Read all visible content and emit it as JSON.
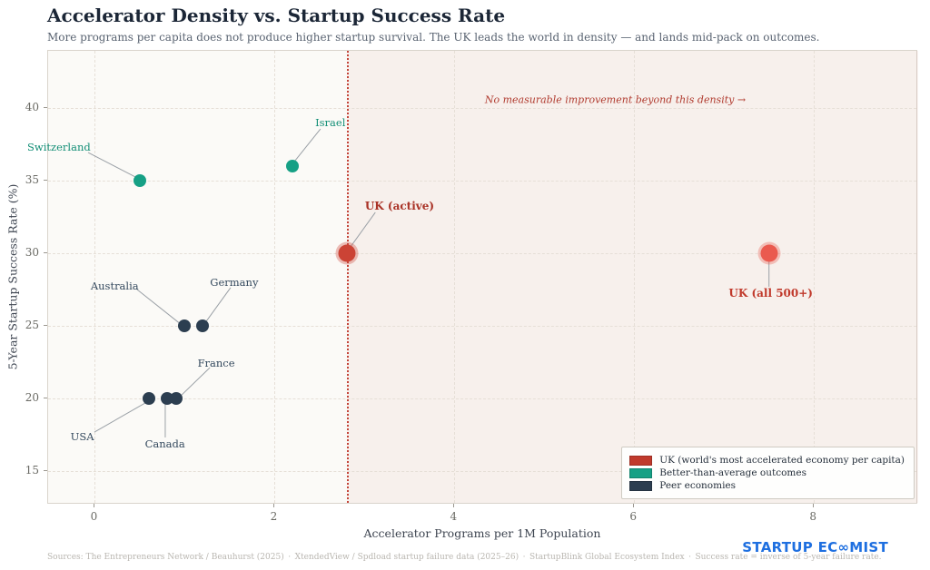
{
  "chart_data": {
    "type": "scatter",
    "title": "Accelerator Density vs. Startup Success Rate",
    "subtitle": "More programs per capita does not produce higher startup survival. The UK leads the world in density — and lands mid-pack on outcomes.",
    "xlabel": "Accelerator Programs per 1M Population",
    "ylabel": "5-Year Startup Success Rate (%)",
    "x_ticks": [
      0,
      2,
      4,
      6,
      8
    ],
    "y_ticks": [
      15,
      20,
      25,
      30,
      35,
      40
    ],
    "xlim": [
      -0.52,
      9.16
    ],
    "ylim": [
      12.7,
      43.9
    ],
    "grid": true,
    "legend_position": "lower right",
    "colors": {
      "uk_active": "#cb4335",
      "uk_all": "#ea5a4f",
      "better": "#16a085",
      "peer": "#2c3e50",
      "threshold": "#c0392b"
    },
    "threshold": {
      "x": 2.8,
      "annotation": "No measurable improvement beyond this density →",
      "annotation_pos": {
        "x": 5.79,
        "y": 40.55
      }
    },
    "points": [
      {
        "name": "Switzerland",
        "x": 0.5,
        "y": 35,
        "group": "better",
        "r": 7,
        "bold": false,
        "label_color": "#148f77",
        "label_pos": {
          "x": -0.4,
          "y": 37.29
        },
        "leader": {
          "x1": -0.075,
          "y1": 36.91,
          "x2": 0.45,
          "y2": 35.23
        }
      },
      {
        "name": "Israel",
        "x": 2.2,
        "y": 36,
        "group": "better",
        "r": 7,
        "bold": false,
        "label_color": "#148f77",
        "label_pos": {
          "x": 2.62,
          "y": 38.97
        },
        "leader": {
          "x1": 2.51,
          "y1": 38.53,
          "x2": 2.22,
          "y2": 36.29
        }
      },
      {
        "name": "UK (active)",
        "x": 2.8,
        "y": 30,
        "group": "uk_active",
        "r": 9.5,
        "bold": true,
        "label_color": "#a93226",
        "label_pos": {
          "x": 3.39,
          "y": 33.23
        },
        "leader": {
          "x1": 3.12,
          "y1": 32.79,
          "x2": 2.83,
          "y2": 30.3
        }
      },
      {
        "name": "UK (all 500+)",
        "x": 7.5,
        "y": 30,
        "group": "uk_all",
        "r": 9.5,
        "bold": true,
        "label_color": "#c0392b",
        "label_pos": {
          "x": 7.52,
          "y": 27.24
        },
        "leader": {
          "x1": 7.5,
          "y1": 27.68,
          "x2": 7.5,
          "y2": 29.74
        }
      },
      {
        "name": "Australia",
        "x": 1.0,
        "y": 25,
        "group": "peer",
        "r": 7,
        "bold": false,
        "label_color": "#34495e",
        "label_pos": {
          "x": 0.22,
          "y": 27.74
        },
        "leader": {
          "x1": 0.47,
          "y1": 27.49,
          "x2": 0.965,
          "y2": 25.06
        }
      },
      {
        "name": "Germany",
        "x": 1.2,
        "y": 25,
        "group": "peer",
        "r": 7,
        "bold": false,
        "label_color": "#34495e",
        "label_pos": {
          "x": 1.55,
          "y": 27.99
        },
        "leader": {
          "x1": 1.51,
          "y1": 27.62,
          "x2": 1.218,
          "y2": 25.12
        }
      },
      {
        "name": "USA",
        "x": 0.6,
        "y": 20,
        "group": "peer",
        "r": 7,
        "bold": false,
        "label_color": "#34495e",
        "label_pos": {
          "x": -0.14,
          "y": 17.38
        },
        "leader": {
          "x1": -0.005,
          "y1": 17.69,
          "x2": 0.561,
          "y2": 19.69
        }
      },
      {
        "name": "Canada",
        "x": 0.8,
        "y": 20,
        "group": "peer",
        "r": 7,
        "bold": false,
        "label_color": "#34495e",
        "label_pos": {
          "x": 0.78,
          "y": 16.88
        },
        "leader": {
          "x1": 0.783,
          "y1": 17.32,
          "x2": 0.783,
          "y2": 19.63
        }
      },
      {
        "name": "France",
        "x": 0.9,
        "y": 20,
        "group": "peer",
        "r": 7,
        "bold": false,
        "label_color": "#34495e",
        "label_pos": {
          "x": 1.35,
          "y": 22.43
        },
        "leader": {
          "x1": 1.28,
          "y1": 22.12,
          "x2": 0.935,
          "y2": 20.06
        }
      }
    ],
    "legend": [
      {
        "color_key": "uk_active",
        "swatch_color": "#c0392b",
        "label": "UK (world's most accelerated economy per capita)"
      },
      {
        "color_key": "better",
        "swatch_color": "#16a085",
        "label": "Better-than-average outcomes"
      },
      {
        "color_key": "peer",
        "swatch_color": "#2c3e50",
        "label": "Peer economies"
      }
    ]
  },
  "footer": {
    "sources_segments": [
      "Sources: The Entrepreneurs Network / Beauhurst (2025)",
      "XtendedView / Spdload startup failure data (2025–26)",
      "StartupBlink Global Ecosystem Index",
      "Success rate = inverse of 5-year failure rate."
    ],
    "logo": "STARTUP EC∞MIST"
  }
}
